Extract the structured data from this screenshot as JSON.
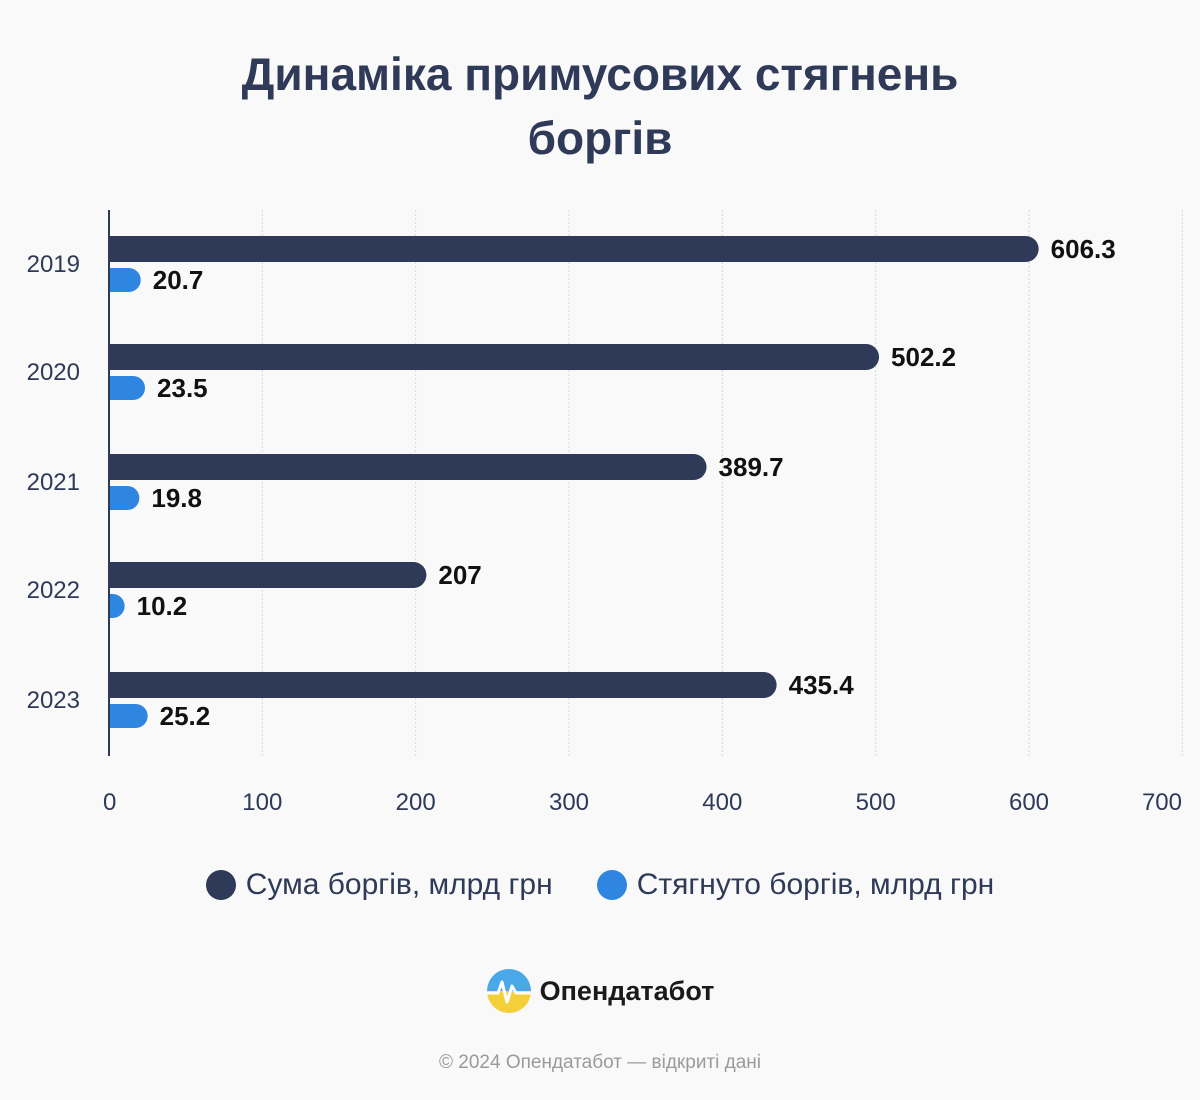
{
  "title": {
    "line1": "Динаміка примусових стягнень",
    "line2": "боргів"
  },
  "colors": {
    "series1": "#2e3a57",
    "series2": "#2f86e0",
    "text": "#2e3a57",
    "grid": "#d7d7d7"
  },
  "chart_data": {
    "type": "bar",
    "orientation": "horizontal",
    "categories": [
      "2019",
      "2020",
      "2021",
      "2022",
      "2023"
    ],
    "series": [
      {
        "name": "Сума боргів, млрд грн",
        "values": [
          606.3,
          502.2,
          389.7,
          207,
          435.4
        ],
        "labels": [
          "606.3",
          "502.2",
          "389.7",
          "207",
          "435.4"
        ]
      },
      {
        "name": "Стягнуто боргів, млрд грн",
        "values": [
          20.7,
          23.5,
          19.8,
          10.2,
          25.2
        ],
        "labels": [
          "20.7",
          "23.5",
          "19.8",
          "10.2",
          "25.2"
        ]
      }
    ],
    "xlim": [
      0,
      700
    ],
    "xticks": [
      "0",
      "100",
      "200",
      "300",
      "400",
      "500",
      "600",
      "700"
    ],
    "grid": true,
    "legend_position": "bottom"
  },
  "brand": {
    "name": "Опендатабот",
    "icon": "opendatabot-logo-icon"
  },
  "footer": {
    "text": "© 2024 Опендатабот — відкриті дані"
  }
}
